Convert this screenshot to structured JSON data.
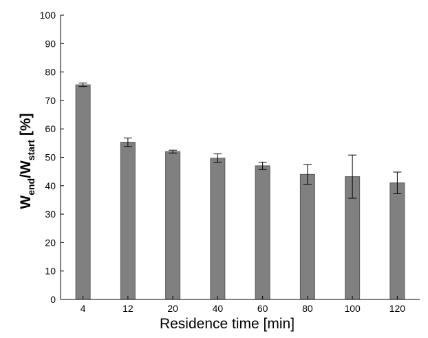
{
  "chart_data": {
    "type": "bar",
    "categories": [
      "4",
      "12",
      "20",
      "40",
      "60",
      "80",
      "100",
      "120"
    ],
    "values": [
      75.5,
      55.3,
      52.0,
      49.7,
      47.0,
      44.0,
      43.2,
      41.0
    ],
    "errors": [
      0.6,
      1.5,
      0.5,
      1.5,
      1.3,
      3.5,
      7.6,
      3.8
    ],
    "xlabel": "Residence time [min]",
    "ylabel": {
      "parts": [
        "W",
        "end",
        "/W",
        "start",
        " [%]"
      ]
    },
    "ylim": [
      0,
      100
    ],
    "yticks": [
      0,
      10,
      20,
      30,
      40,
      50,
      60,
      70,
      80,
      90,
      100
    ],
    "grid": false,
    "bar_color": "#808080",
    "bar_edge_color": "#5a5a5a"
  }
}
